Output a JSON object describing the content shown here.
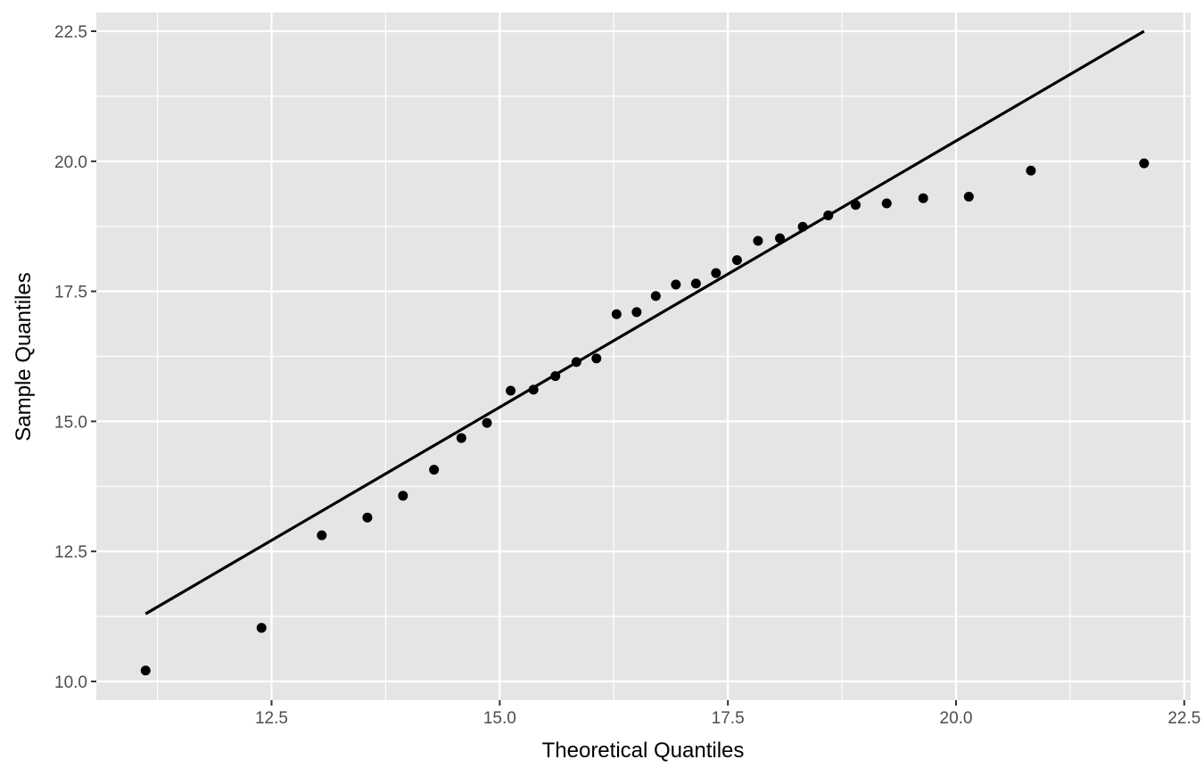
{
  "chart_data": {
    "type": "scatter",
    "title": "",
    "xlabel": "Theoretical Quantiles",
    "ylabel": "Sample Quantiles",
    "xlim": [
      10.58,
      22.57
    ],
    "ylim": [
      9.64,
      22.86
    ],
    "x_ticks": [
      "12.5",
      "15.0",
      "17.5",
      "20.0",
      "22.5"
    ],
    "y_ticks": [
      "10.0",
      "12.5",
      "15.0",
      "17.5",
      "20.0",
      "22.5"
    ],
    "grid": true,
    "legend": "none",
    "panel_color": "#e5e5e5",
    "grid_color": "#ffffff",
    "point_color": "#000000",
    "reference_line": {
      "x": [
        11.12,
        22.06
      ],
      "y": [
        11.3,
        22.5
      ]
    },
    "points": {
      "x": [
        11.12,
        12.39,
        13.05,
        13.55,
        13.94,
        14.28,
        14.58,
        14.86,
        15.12,
        15.37,
        15.61,
        15.84,
        16.06,
        16.28,
        16.5,
        16.71,
        16.93,
        17.15,
        17.37,
        17.6,
        17.83,
        18.07,
        18.32,
        18.6,
        18.9,
        19.24,
        19.64,
        20.14,
        20.82,
        22.06
      ],
      "y": [
        10.21,
        11.03,
        12.81,
        13.15,
        13.57,
        14.07,
        14.68,
        14.97,
        15.59,
        15.61,
        15.87,
        16.14,
        16.21,
        17.06,
        17.1,
        17.41,
        17.63,
        17.65,
        17.85,
        18.1,
        18.47,
        18.52,
        18.74,
        18.96,
        19.16,
        19.19,
        19.29,
        19.32,
        19.82,
        19.96
      ]
    }
  }
}
